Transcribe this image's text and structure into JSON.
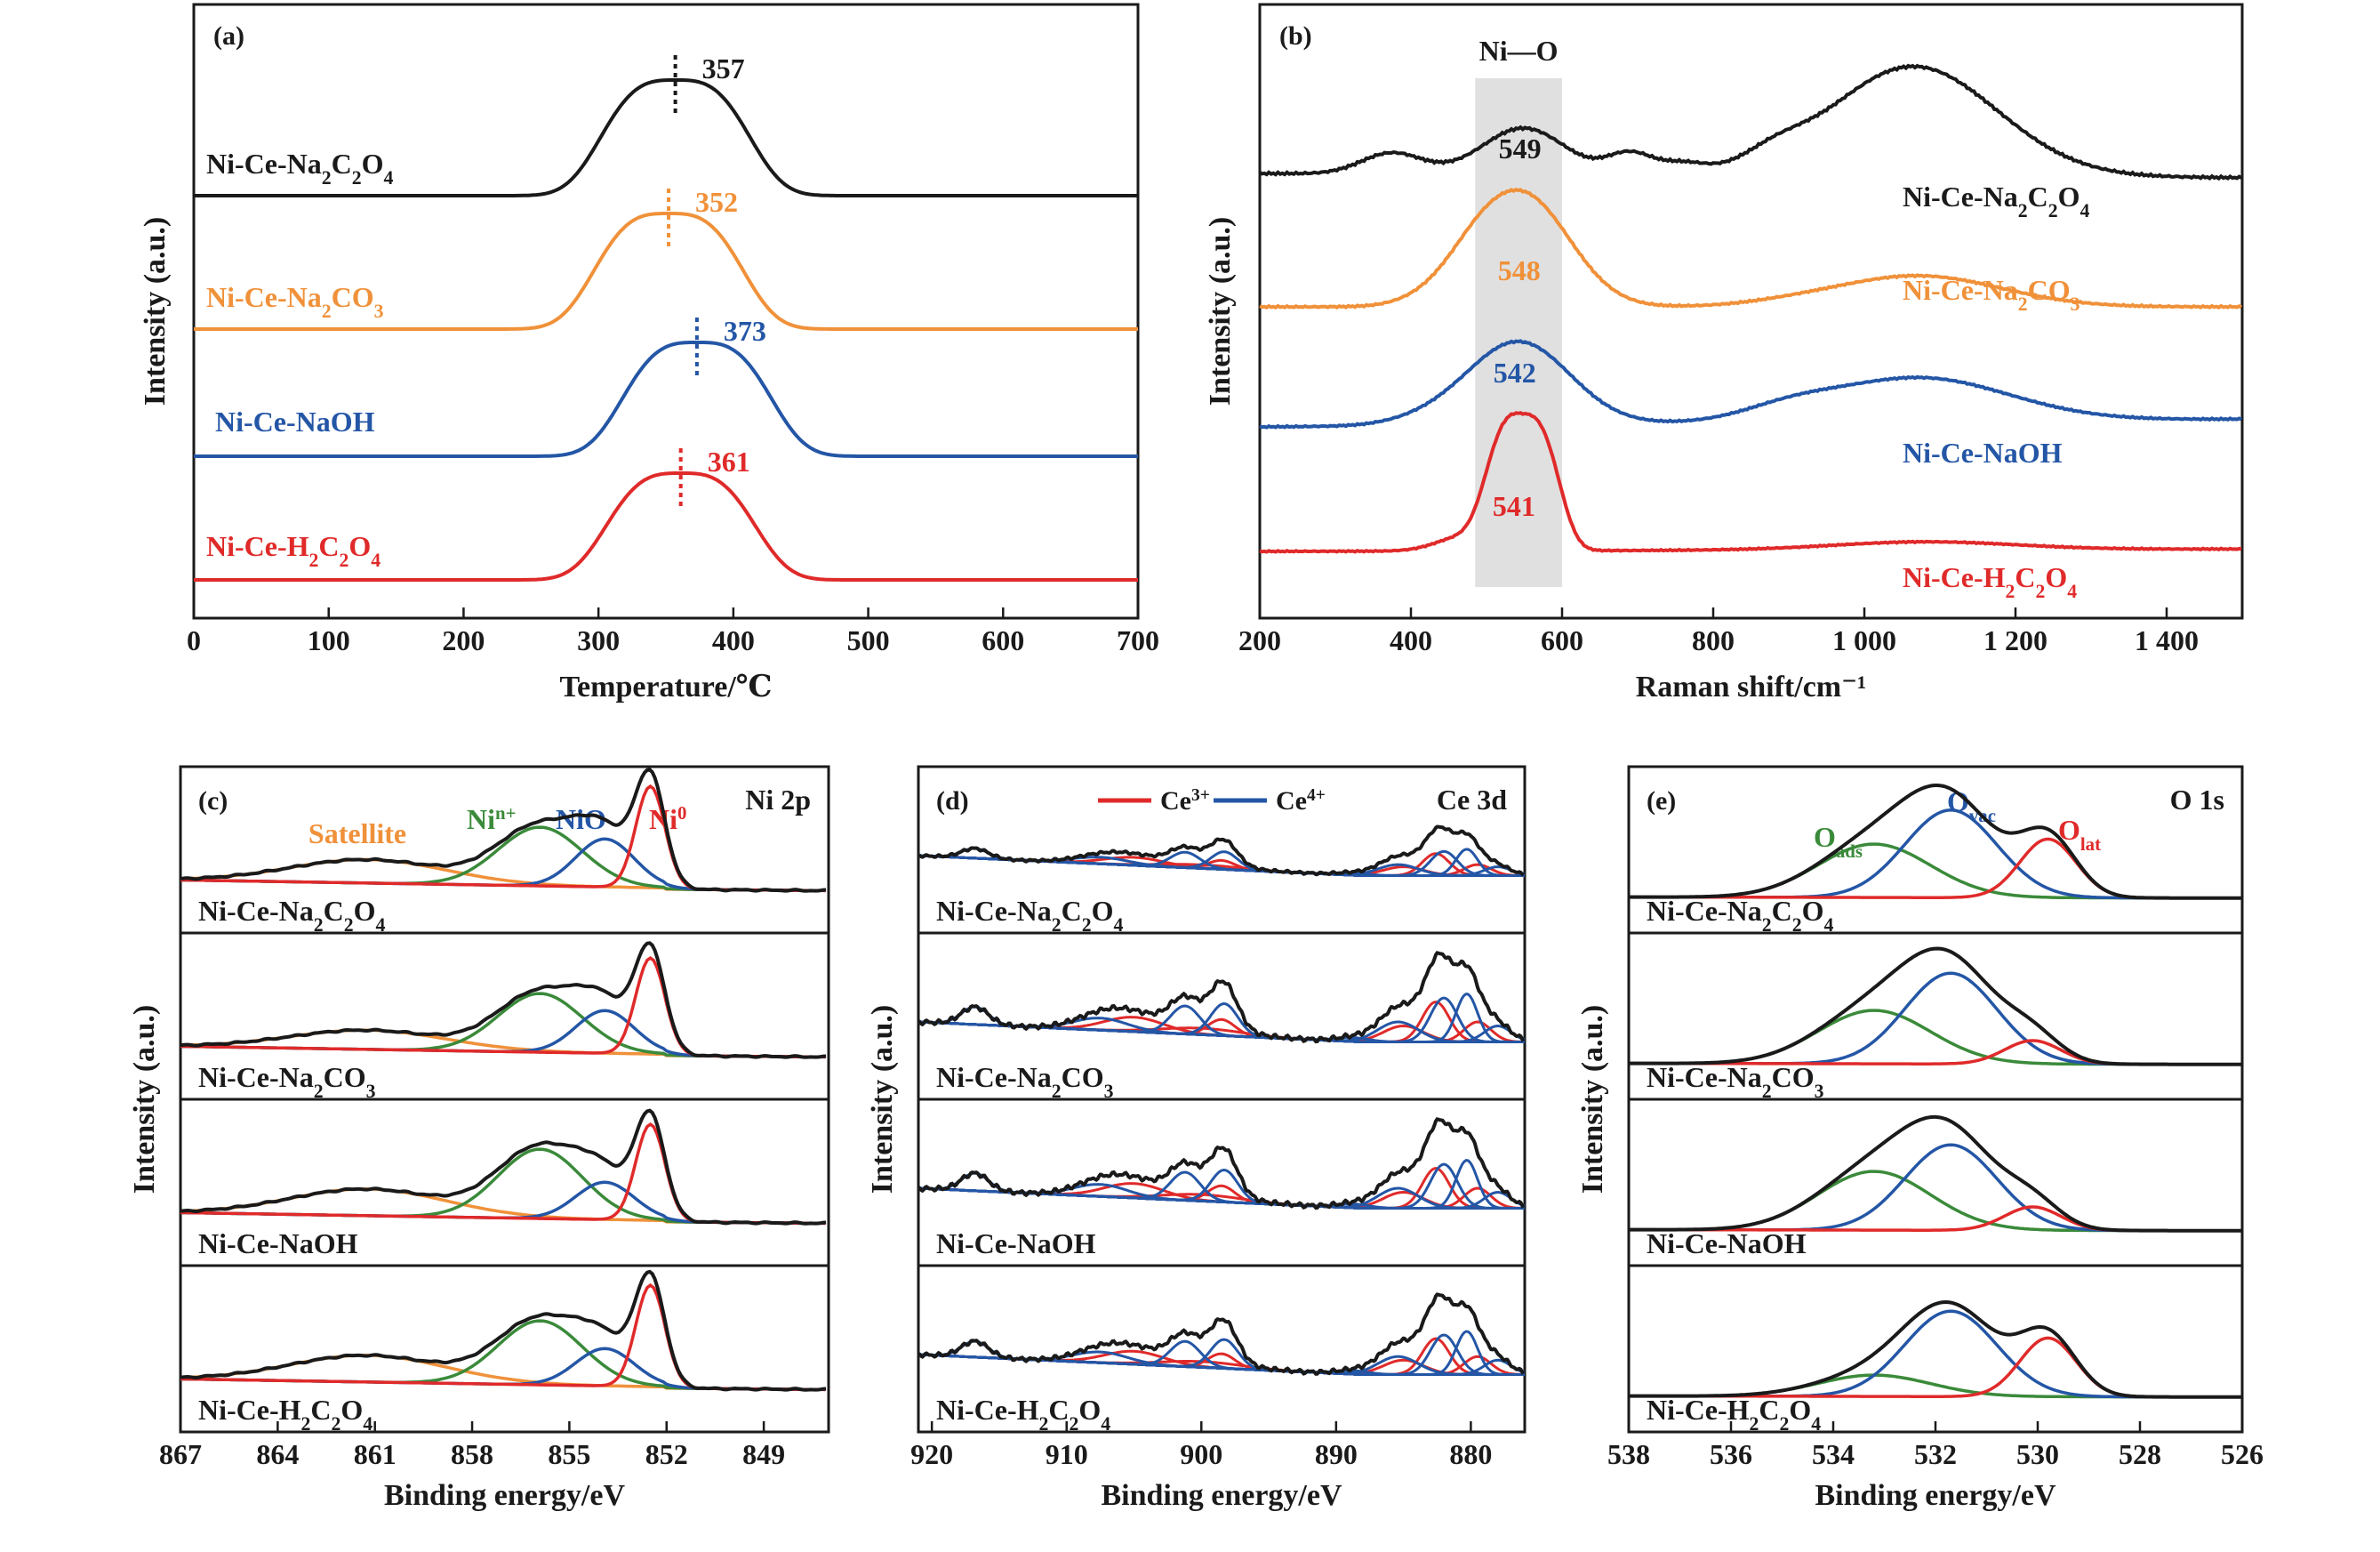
{
  "colors": {
    "black": "#1a1a1a",
    "orange": "#f0913a",
    "blue": "#2456a6",
    "red": "#e02a2a",
    "green": "#3a8a3a",
    "shade": "#e0e0e0"
  },
  "chart_data": [
    {
      "id": "a",
      "panel_label": "(a)",
      "type": "line",
      "xlabel": "Temperature/℃",
      "ylabel": "Intensity (a.u.)",
      "xlim": [
        0,
        700
      ],
      "xticks": [
        "0",
        "100",
        "200",
        "300",
        "400",
        "500",
        "600",
        "700"
      ],
      "series": [
        {
          "name": "Ni-Ce-Na2C2O4",
          "color": "black",
          "peak": 357,
          "peak_label": "357"
        },
        {
          "name": "Ni-Ce-Na2CO3",
          "color": "orange",
          "peak": 352,
          "peak_label": "352"
        },
        {
          "name": "Ni-Ce-NaOH",
          "color": "blue",
          "peak": 373,
          "peak_label": "373"
        },
        {
          "name": "Ni-Ce-H2C2O4",
          "color": "red",
          "peak": 361,
          "peak_label": "361"
        }
      ]
    },
    {
      "id": "b",
      "panel_label": "(b)",
      "type": "line",
      "xlabel": "Raman shift/cm⁻¹",
      "ylabel": "Intensity (a.u.)",
      "xlim": [
        200,
        1500
      ],
      "xticks": [
        "200",
        "400",
        "600",
        "800",
        "1 000",
        "1 200",
        "1 400"
      ],
      "band_label": "Ni—O",
      "band_range": [
        485,
        600
      ],
      "series": [
        {
          "name": "Ni-Ce-Na2C2O4",
          "color": "black",
          "peak": 549,
          "peak_label": "549"
        },
        {
          "name": "Ni-Ce-Na2CO3",
          "color": "orange",
          "peak": 548,
          "peak_label": "548"
        },
        {
          "name": "Ni-Ce-NaOH",
          "color": "blue",
          "peak": 542,
          "peak_label": "542"
        },
        {
          "name": "Ni-Ce-H2C2O4",
          "color": "red",
          "peak": 541,
          "peak_label": "541"
        }
      ]
    },
    {
      "id": "c",
      "panel_label": "(c)",
      "type": "line",
      "spectrum": "Ni 2p",
      "xlabel": "Binding energy/eV",
      "ylabel": "Intensity (a.u.)",
      "xlim": [
        867,
        847
      ],
      "xticks": [
        "867",
        "864",
        "861",
        "858",
        "855",
        "852",
        "849"
      ],
      "components": [
        {
          "name": "Satellite",
          "color": "orange",
          "center": 861.2
        },
        {
          "name": "Ni n+",
          "color": "green",
          "center": 855.9
        },
        {
          "name": "NiO",
          "color": "blue",
          "center": 853.9
        },
        {
          "name": "Ni0",
          "color": "red",
          "center": 852.5
        }
      ],
      "samples": [
        "Ni-Ce-Na2C2O4",
        "Ni-Ce-Na2CO3",
        "Ni-Ce-NaOH",
        "Ni-Ce-H2C2O4"
      ]
    },
    {
      "id": "d",
      "panel_label": "(d)",
      "type": "line",
      "spectrum": "Ce 3d",
      "xlabel": "Binding energy/eV",
      "ylabel": "Intensity (a.u.)",
      "xlim": [
        921,
        876
      ],
      "xticks": [
        "920",
        "910",
        "900",
        "890",
        "880"
      ],
      "legend": [
        {
          "name": "Ce3+",
          "color": "red"
        },
        {
          "name": "Ce4+",
          "color": "blue"
        }
      ],
      "samples": [
        "Ni-Ce-Na2C2O4",
        "Ni-Ce-Na2CO3",
        "Ni-Ce-NaOH",
        "Ni-Ce-H2C2O4"
      ]
    },
    {
      "id": "e",
      "panel_label": "(e)",
      "type": "line",
      "spectrum": "O 1s",
      "xlabel": "Binding energy/eV",
      "ylabel": "Intensity (a.u.)",
      "xlim": [
        538,
        526
      ],
      "xticks": [
        "538",
        "536",
        "534",
        "532",
        "530",
        "528",
        "526"
      ],
      "components": [
        {
          "name": "O ads",
          "color": "green",
          "center": 533.0
        },
        {
          "name": "O vac",
          "color": "blue",
          "center": 531.6
        },
        {
          "name": "O lat",
          "color": "red",
          "center": 529.8
        }
      ],
      "samples": [
        "Ni-Ce-Na2C2O4",
        "Ni-Ce-Na2CO3",
        "Ni-Ce-NaOH",
        "Ni-Ce-H2C2O4"
      ]
    }
  ]
}
